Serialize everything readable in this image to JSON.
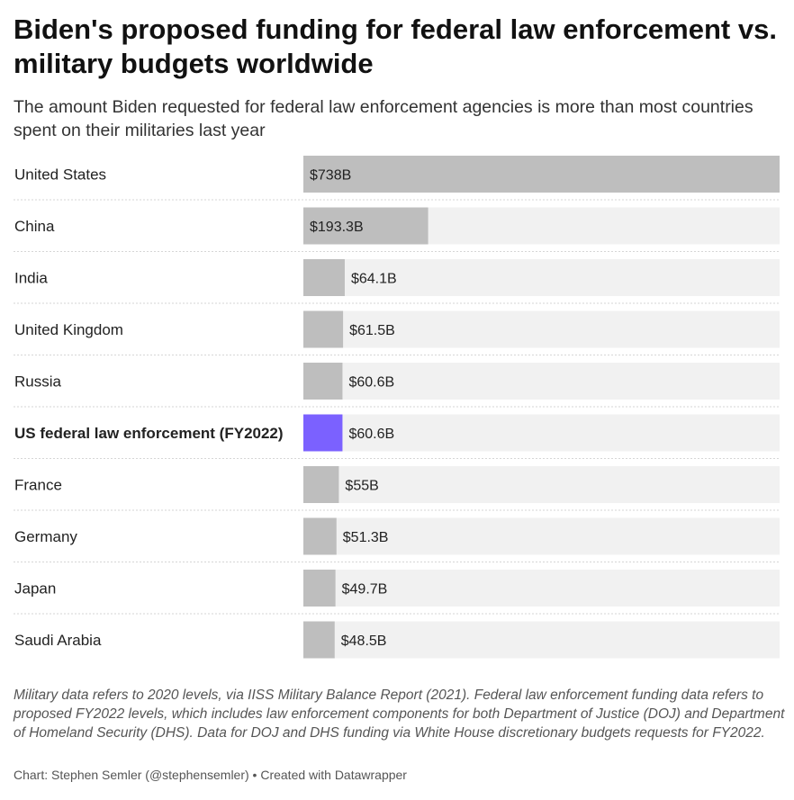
{
  "title": "Biden's proposed funding for federal law enforcement vs. military budgets worldwide",
  "subtitle": "The amount Biden requested for federal law enforcement agencies is more than most countries spent on their militaries last year",
  "notes": "Military data refers to 2020 levels, via IISS Military Balance Report (2021). Federal law enforcement funding data refers to proposed FY2022 levels, which includes law enforcement components for both Department of Justice (DOJ) and Department of Homeland Security (DHS). Data for DOJ and DHS funding via White House discretionary budgets requests for FY2022.",
  "credit": "Chart: Stephen Semler (@stephensemler) • Created with Datawrapper",
  "chart_data": {
    "type": "bar",
    "orientation": "horizontal",
    "categories": [
      "United States",
      "China",
      "India",
      "United Kingdom",
      "Russia",
      "US federal law enforcement (FY2022)",
      "France",
      "Germany",
      "Japan",
      "Saudi Arabia"
    ],
    "values": [
      738,
      193.3,
      64.1,
      61.5,
      60.6,
      60.6,
      55,
      51.3,
      49.7,
      48.5
    ],
    "value_labels": [
      "$738B",
      "$193.3B",
      "$64.1B",
      "$61.5B",
      "$60.6B",
      "$60.6B",
      "$55B",
      "$51.3B",
      "$49.7B",
      "$48.5B"
    ],
    "highlight_index": 5,
    "xlim": [
      0,
      738
    ],
    "colors": {
      "bar": "#bebebe",
      "highlight": "#7b61ff",
      "track": "#f1f1f1",
      "divider": "#d6d6d6"
    }
  }
}
